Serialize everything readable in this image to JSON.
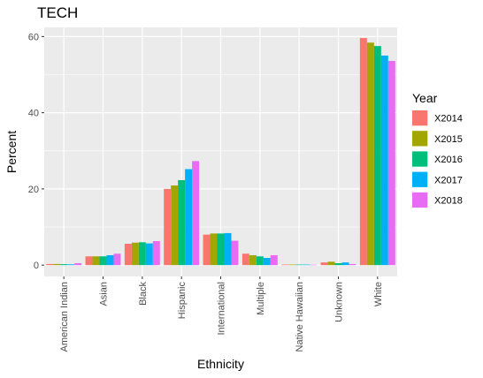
{
  "chart_data": {
    "type": "bar",
    "title": "TECH",
    "xlabel": "Ethnicity",
    "ylabel": "Percent",
    "ylim": [
      -2.97,
      62.4
    ],
    "yticks": [
      0,
      20,
      40,
      60
    ],
    "grid": true,
    "legend_title": "Year",
    "legend_position": "right",
    "categories": [
      "American Indian",
      "Asian",
      "Black",
      "Hispanic",
      "International",
      "Multiple",
      "Native Hawaiian",
      "Unknown",
      "White"
    ],
    "series": [
      {
        "name": "X2014",
        "color": "#F8766D",
        "values": [
          0.3,
          2.3,
          5.6,
          20.0,
          8.0,
          3.0,
          0.15,
          0.7,
          59.6
        ]
      },
      {
        "name": "X2015",
        "color": "#A3A500",
        "values": [
          0.3,
          2.3,
          5.9,
          20.9,
          8.3,
          2.6,
          0.15,
          0.9,
          58.4
        ]
      },
      {
        "name": "X2016",
        "color": "#00BF7D",
        "values": [
          0.25,
          2.3,
          6.0,
          22.3,
          8.3,
          2.3,
          0.15,
          0.5,
          57.5
        ]
      },
      {
        "name": "X2017",
        "color": "#00B0F6",
        "values": [
          0.2,
          2.6,
          5.7,
          25.2,
          8.4,
          1.9,
          0.15,
          0.7,
          55.0
        ]
      },
      {
        "name": "X2018",
        "color": "#E76BF3",
        "values": [
          0.5,
          3.0,
          6.3,
          27.3,
          6.4,
          2.6,
          0.1,
          0.3,
          53.6
        ]
      }
    ]
  }
}
